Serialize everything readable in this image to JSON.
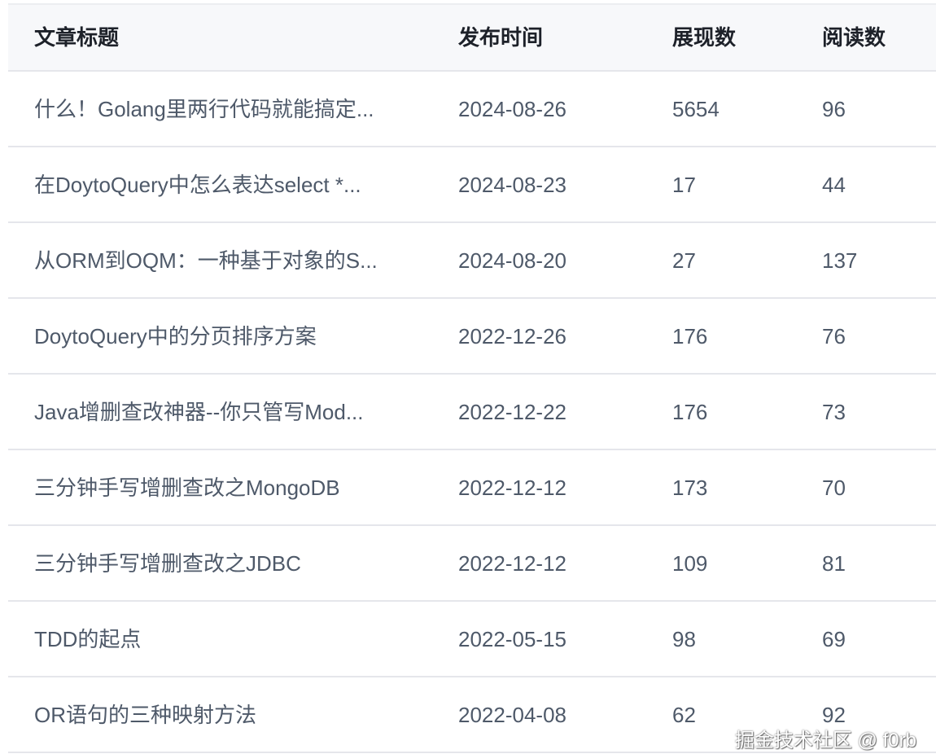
{
  "headers": [
    "文章标题",
    "发布时间",
    "展现数",
    "阅读数"
  ],
  "rows": [
    {
      "title": "什么！Golang里两行代码就能搞定...",
      "date": "2024-08-26",
      "views": "5654",
      "reads": "96"
    },
    {
      "title": "在DoytoQuery中怎么表达select *...",
      "date": "2024-08-23",
      "views": "17",
      "reads": "44"
    },
    {
      "title": "从ORM到OQM：一种基于对象的S...",
      "date": "2024-08-20",
      "views": "27",
      "reads": "137"
    },
    {
      "title": "DoytoQuery中的分页排序方案",
      "date": "2022-12-26",
      "views": "176",
      "reads": "76"
    },
    {
      "title": "Java增删查改神器--你只管写Mod...",
      "date": "2022-12-22",
      "views": "176",
      "reads": "73"
    },
    {
      "title": "三分钟手写增删查改之MongoDB",
      "date": "2022-12-12",
      "views": "173",
      "reads": "70"
    },
    {
      "title": "三分钟手写增删查改之JDBC",
      "date": "2022-12-12",
      "views": "109",
      "reads": "81"
    },
    {
      "title": "TDD的起点",
      "date": "2022-05-15",
      "views": "98",
      "reads": "69"
    },
    {
      "title": "OR语句的三种映射方法",
      "date": "2022-04-08",
      "views": "62",
      "reads": "92"
    }
  ],
  "watermark": "掘金技术社区 @ f0rb"
}
